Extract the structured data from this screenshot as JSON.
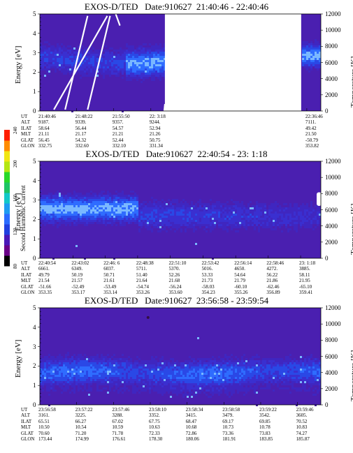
{
  "colorbar": {
    "label": "Second Harmonic Current",
    "ticks": [
      "80",
      "120",
      "160",
      "200",
      "240"
    ],
    "colors": [
      "#000000",
      "#6a0088",
      "#4a18b8",
      "#2040e0",
      "#2a6cff",
      "#1e9cf0",
      "#12c8c8",
      "#1ec464",
      "#28d828",
      "#b4e614",
      "#f0e614",
      "#ff8c00",
      "#ff1e00"
    ]
  },
  "chart_data": [
    {
      "type": "heatmap",
      "title": "EXOS-D/TED   Date:910627  21:40:46 - 22:40:46",
      "ylabel": "Energy [eV]",
      "ylim": [
        0,
        5
      ],
      "yticks": [
        "0",
        "1",
        "2",
        "3",
        "4",
        "5"
      ],
      "y2label": "Temperature [K]",
      "y2lim": [
        0,
        12000
      ],
      "y2ticks": [
        "0",
        "2000",
        "4000",
        "6000",
        "8000",
        "10000",
        "12000"
      ],
      "rows": [
        "UT",
        "ALT",
        "ILAT",
        "MLT",
        "GLAT",
        "GLON"
      ],
      "columns": [
        {
          "frac": 0.0,
          "vals": [
            "21:40:46",
            "9187.",
            "58.64",
            "21.11",
            "56.45",
            "332.75"
          ]
        },
        {
          "frac": 0.131,
          "vals": [
            "21:48:22",
            "9339.",
            "56.44",
            "21.17",
            "54.32",
            "332.60"
          ]
        },
        {
          "frac": 0.263,
          "vals": [
            "21:55:50",
            "9357.",
            "54.57",
            "21.21",
            "52.44",
            "332.10"
          ]
        },
        {
          "frac": 0.395,
          "vals": [
            "22: 3:18",
            "9244.",
            "52.94",
            "21.26",
            "50.75",
            "331.34"
          ]
        },
        {
          "frac": 0.95,
          "vals": [
            "22:36:46",
            "7111.",
            "49.42",
            "21.50",
            "-50.79",
            "353.82"
          ]
        }
      ],
      "gap": [
        0.445,
        0.93
      ],
      "features": [
        "line-streaks 0.05-0.25",
        "intense band ~2.8 eV"
      ]
    },
    {
      "type": "heatmap",
      "title": "EXOS-D/TED   Date:910627  22:40:54 - 23: 1:18",
      "ylabel": "Energy [eV]",
      "ylim": [
        0,
        5
      ],
      "yticks": [
        "0",
        "1",
        "2",
        "3",
        "4",
        "5"
      ],
      "y2label": "Temperature [K]",
      "y2lim": [
        0,
        12000
      ],
      "y2ticks": [
        "0",
        "2000",
        "4000",
        "6000",
        "8000",
        "10000",
        "12000"
      ],
      "rows": [
        "UT",
        "ALT",
        "ILAT",
        "MLT",
        "GLAT",
        "GLON"
      ],
      "columns": [
        {
          "frac": 0.0,
          "vals": [
            "22:40:54",
            "6661.",
            "49.79",
            "21.54",
            "-51.66",
            "353.35"
          ]
        },
        {
          "frac": 0.118,
          "vals": [
            "22:43:02",
            "6349.",
            "50.19",
            "21.57",
            "-52.49",
            "353.17"
          ]
        },
        {
          "frac": 0.232,
          "vals": [
            "22:46: 6",
            "6037.",
            "50.71",
            "21.61",
            "-53.49",
            "353.14"
          ]
        },
        {
          "frac": 0.348,
          "vals": [
            "22:48:38",
            "5711.",
            "51.40",
            "21.64",
            "-54.74",
            "353.26"
          ]
        },
        {
          "frac": 0.464,
          "vals": [
            "22:51:10",
            "5370.",
            "52.26",
            "21.68",
            "-56.24",
            "353.60"
          ]
        },
        {
          "frac": 0.581,
          "vals": [
            "22:53:42",
            "5016.",
            "53.33",
            "21.73",
            "-58.03",
            "354.23"
          ]
        },
        {
          "frac": 0.697,
          "vals": [
            "22:56:14",
            "4650.",
            "54.64",
            "21.79",
            "-60.10",
            "355.26"
          ]
        },
        {
          "frac": 0.812,
          "vals": [
            "22:58:46",
            "4272.",
            "56.22",
            "21.86",
            "-62.46",
            "356.89"
          ]
        },
        {
          "frac": 0.928,
          "vals": [
            "23: 1:18",
            "3885.",
            "58.11",
            "21.95",
            "-65.10",
            "359.41"
          ]
        }
      ],
      "features": [
        "intense band ~2.5 eV fading"
      ]
    },
    {
      "type": "heatmap",
      "title": "EXOS-D/TED   Date:910627  23:56:58 - 23:59:54",
      "ylabel": "Energy [eV]",
      "ylim": [
        0,
        5
      ],
      "yticks": [
        "0",
        "1",
        "2",
        "3",
        "4",
        "5"
      ],
      "y2label": "Temperature [K]",
      "y2lim": [
        0,
        12000
      ],
      "y2ticks": [
        "0",
        "2000",
        "4000",
        "6000",
        "8000",
        "10000",
        "12000"
      ],
      "rows": [
        "UT",
        "ALT",
        "ILAT",
        "MLT",
        "GLAT",
        "GLON"
      ],
      "columns": [
        {
          "frac": 0.0,
          "vals": [
            "23:56:58",
            "3161.",
            "65.51",
            "10.50",
            "70.60",
            "173.44"
          ]
        },
        {
          "frac": 0.131,
          "vals": [
            "23:57:22",
            "3225.",
            "66.27",
            "10.54",
            "71.20",
            "174.99"
          ]
        },
        {
          "frac": 0.262,
          "vals": [
            "23:57:46",
            "3288.",
            "67.02",
            "10.59",
            "71.78",
            "176.61"
          ]
        },
        {
          "frac": 0.393,
          "vals": [
            "23:58:10",
            "3352.",
            "67.75",
            "10.63",
            "72.33",
            "178.30"
          ]
        },
        {
          "frac": 0.524,
          "vals": [
            "23:58:34",
            "3415.",
            "68.47",
            "10.68",
            "72.86",
            "180.06"
          ]
        },
        {
          "frac": 0.655,
          "vals": [
            "23:58:58",
            "3479.",
            "69.17",
            "10.73",
            "73.36",
            "181.91"
          ]
        },
        {
          "frac": 0.786,
          "vals": [
            "23:59:22",
            "3542.",
            "69.85",
            "10.78",
            "73.83",
            "183.85"
          ]
        },
        {
          "frac": 0.917,
          "vals": [
            "23:59:46",
            "3605.",
            "70.52",
            "10.83",
            "74.27",
            "185.87"
          ]
        }
      ],
      "features": [
        "moderate band ~1.8 eV"
      ]
    }
  ]
}
